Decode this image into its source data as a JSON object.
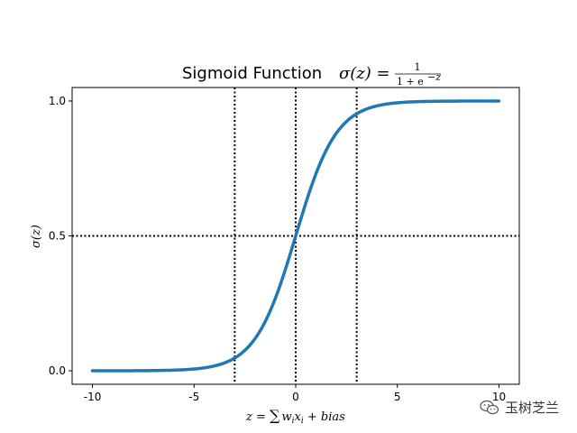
{
  "chart_data": {
    "type": "line",
    "title": "Sigmoid Function σ(z) = 1 / (1 + e^(−z))",
    "title_parts": {
      "text": "Sigmoid Function ",
      "lhs": "σ(z) =",
      "numerator": "1",
      "denominator": "1 + e",
      "exponent": "−z"
    },
    "xlabel": "z = ∑ wᵢxᵢ + bias",
    "xlabel_parts": {
      "z": "z",
      "eq": " = ",
      "sum": "∑",
      "w": "w",
      "x": "x",
      "sub": "i",
      "bias": " + bias"
    },
    "ylabel": "σ(z)",
    "xlim": [
      -11,
      11
    ],
    "ylim": [
      -0.05,
      1.05
    ],
    "x_ticks": [
      -10,
      -5,
      0,
      5,
      10
    ],
    "x_tick_labels": [
      "-10",
      "-5",
      "0",
      "5",
      "10"
    ],
    "y_ticks": [
      0.0,
      0.5,
      1.0
    ],
    "y_tick_labels": [
      "0.0",
      "0.5",
      "1.0"
    ],
    "series": [
      {
        "function": "sigmoid",
        "x_range": [
          -10,
          10
        ],
        "color": "#1f77b4"
      }
    ],
    "reference_lines": {
      "vertical_x": [
        -3,
        0,
        3
      ],
      "horizontal_y": [
        0.5
      ],
      "color": "#000000",
      "style": "dotted"
    },
    "grid": false,
    "legend": "none"
  },
  "watermark": {
    "text": "玉树芝兰",
    "icon": "wechat-icon"
  }
}
